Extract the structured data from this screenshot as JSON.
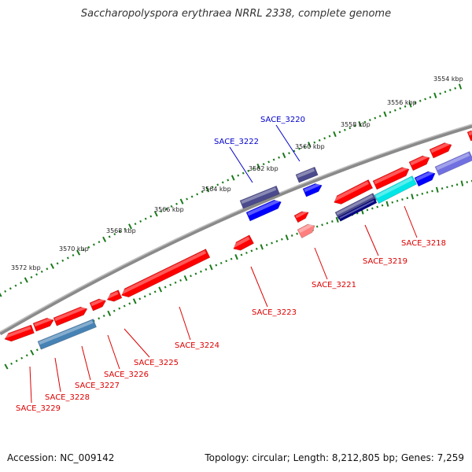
{
  "title": "Saccharopolyspora erythraea NRRL 2338, complete genome",
  "footer": {
    "accession": "Accession: NC_009142",
    "summary": "Topology: circular; Length: 8,212,805 bp; Genes: 7,259"
  },
  "kbp_labels": [
    "3554 kbp",
    "3556 kbp",
    "3558 kbp",
    "3560 kbp",
    "3562 kbp",
    "3564 kbp",
    "3566 kbp",
    "3568 kbp",
    "3570 kbp",
    "3572 kbp"
  ],
  "gene_labels": [
    {
      "name": "SACE_3218",
      "color": "#dd0000"
    },
    {
      "name": "SACE_3219",
      "color": "#dd0000"
    },
    {
      "name": "SACE_3220",
      "color": "#0000cc"
    },
    {
      "name": "SACE_3221",
      "color": "#dd0000"
    },
    {
      "name": "SACE_3222",
      "color": "#0000cc"
    },
    {
      "name": "SACE_3223",
      "color": "#dd0000"
    },
    {
      "name": "SACE_3224",
      "color": "#dd0000"
    },
    {
      "name": "SACE_3225",
      "color": "#dd0000"
    },
    {
      "name": "SACE_3226",
      "color": "#dd0000"
    },
    {
      "name": "SACE_3227",
      "color": "#dd0000"
    },
    {
      "name": "SACE_3228",
      "color": "#dd0000"
    },
    {
      "name": "SACE_3229",
      "color": "#dd0000"
    }
  ],
  "colors": {
    "backbone": "#8c8c8c",
    "tick": "#1a7a1a",
    "gene_red": "#ff0000",
    "gene_blue": "#0000ff",
    "gene_slate": "#4a4a8c",
    "gene_steel": "#4682b4",
    "gene_cyan": "#00e5e5",
    "gene_navy": "#000080",
    "gene_pink": "#ff7f7f",
    "gene_lavender": "#7070e0"
  }
}
